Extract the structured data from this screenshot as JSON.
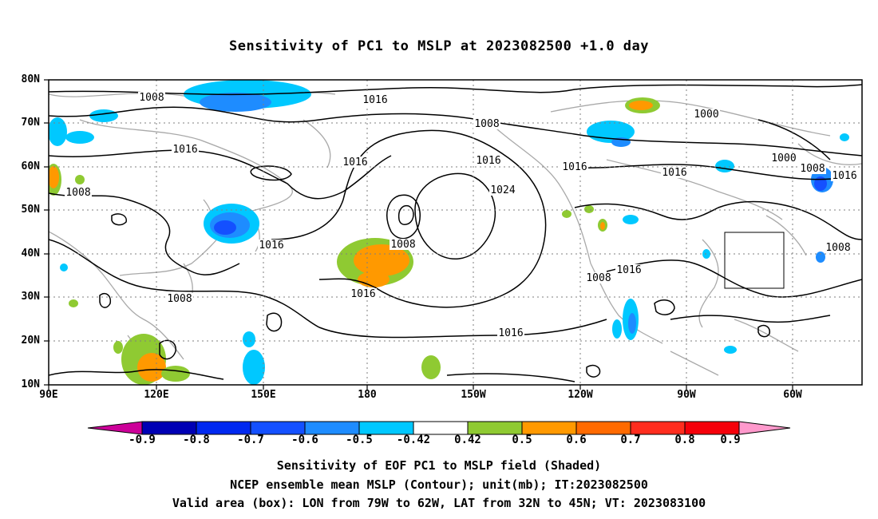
{
  "title": "Sensitivity of PC1 to MSLP at 2023082500 +1.0 day",
  "map": {
    "lat_labels": [
      "80N",
      "70N",
      "60N",
      "50N",
      "40N",
      "30N",
      "20N",
      "10N"
    ],
    "lon_labels": [
      "90E",
      "120E",
      "150E",
      "180",
      "150W",
      "120W",
      "90W",
      "60W"
    ],
    "contour_labels": [
      "1008",
      "1016",
      "1016",
      "1008",
      "1016",
      "1016",
      "1008",
      "1016",
      "1024",
      "1008",
      "1016",
      "1008",
      "1000",
      "1000",
      "1008",
      "1016",
      "1008",
      "1016",
      "1008",
      "1016",
      "1016",
      "1008",
      "1016",
      "1016"
    ],
    "colors": {
      "land": "#a9a9a9",
      "contour": "#000000",
      "grid": "#7f7f7f"
    }
  },
  "colorbar": {
    "colors": [
      "#cc0099",
      "#0000b4",
      "#0028f0",
      "#1450ff",
      "#1e8cff",
      "#00c8ff",
      "#ffffff",
      "#8fca32",
      "#ff9900",
      "#ff6a00",
      "#ff2d1e",
      "#f5000a",
      "#ff99cc"
    ],
    "tick_labels": [
      "-0.9",
      "-0.8",
      "-0.7",
      "-0.6",
      "-0.5",
      "-0.42",
      "0.42",
      "0.5",
      "0.6",
      "0.7",
      "0.8",
      "0.9"
    ]
  },
  "captions": [
    "Sensitivity of EOF PC1 to MSLP field (Shaded)",
    "NCEP ensemble mean MSLP (Contour); unit(mb); IT:2023082500",
    "Valid area (box): LON from 79W to 62W, LAT from 32N to 45N; VT: 2023083100"
  ]
}
